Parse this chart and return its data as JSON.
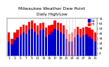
{
  "title": "Milwaukee Weather Dew Point",
  "subtitle": "Daily High/Low",
  "ylim": [
    0,
    74
  ],
  "yticks": [
    4,
    14,
    24,
    34,
    44,
    54,
    64,
    74
  ],
  "ytick_labels": [
    "4",
    "14",
    "24",
    "34",
    "44",
    "54",
    "64",
    "74"
  ],
  "background_color": "#ffffff",
  "bar_width": 0.8,
  "high_color": "#ff0000",
  "low_color": "#0000cc",
  "n_bars": 31,
  "high_values": [
    46,
    34,
    46,
    52,
    58,
    62,
    60,
    68,
    70,
    64,
    60,
    64,
    66,
    56,
    60,
    62,
    70,
    66,
    64,
    60,
    52,
    44,
    46,
    54,
    58,
    54,
    56,
    58,
    56,
    52,
    46
  ],
  "low_values": [
    28,
    22,
    30,
    36,
    42,
    46,
    44,
    52,
    54,
    48,
    42,
    50,
    52,
    38,
    42,
    48,
    54,
    50,
    46,
    44,
    34,
    28,
    28,
    36,
    42,
    36,
    40,
    42,
    38,
    34,
    28
  ],
  "dotted_indices": [
    20,
    21,
    22,
    23
  ],
  "legend_high_label": "Hi",
  "legend_low_label": "Lo",
  "xtick_step": 2,
  "title_fontsize": 4.5,
  "tick_fontsize": 3.2,
  "legend_fontsize": 3.5
}
